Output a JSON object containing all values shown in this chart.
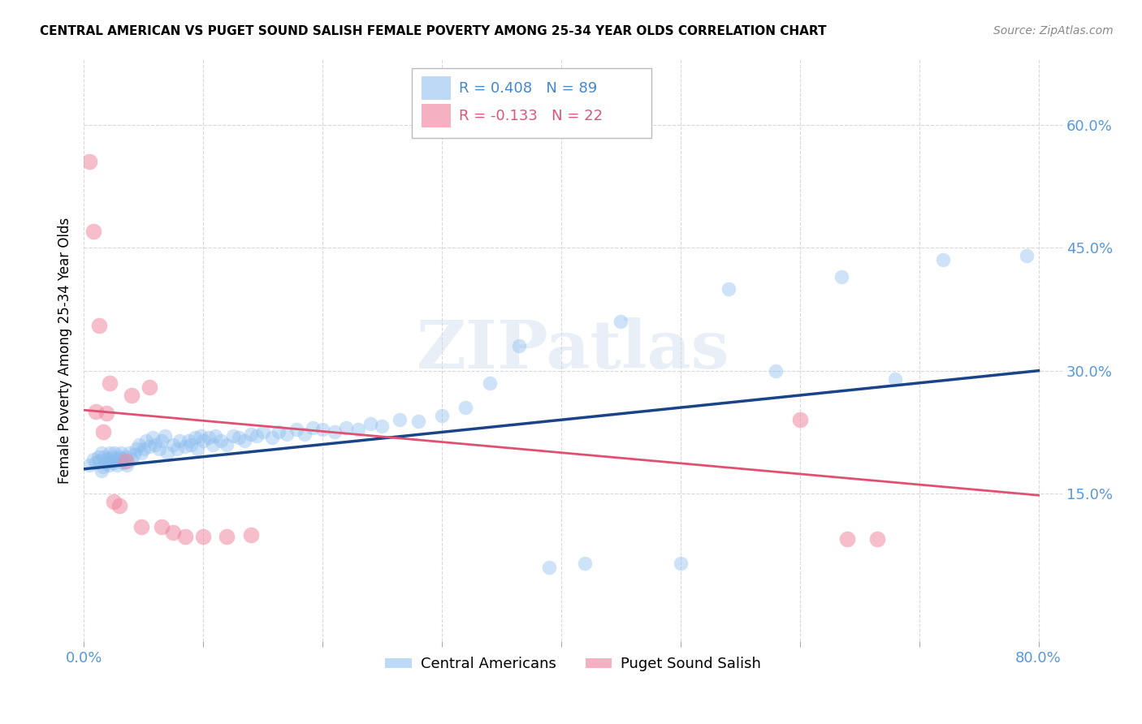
{
  "title": "CENTRAL AMERICAN VS PUGET SOUND SALISH FEMALE POVERTY AMONG 25-34 YEAR OLDS CORRELATION CHART",
  "source": "Source: ZipAtlas.com",
  "ylabel": "Female Poverty Among 25-34 Year Olds",
  "xlim": [
    0.0,
    0.82
  ],
  "ylim": [
    -0.03,
    0.68
  ],
  "xticks": [
    0.0,
    0.1,
    0.2,
    0.3,
    0.4,
    0.5,
    0.6,
    0.7,
    0.8
  ],
  "xticklabels": [
    "0.0%",
    "",
    "",
    "",
    "",
    "",
    "",
    "",
    "80.0%"
  ],
  "ytick_positions": [
    0.15,
    0.3,
    0.45,
    0.6
  ],
  "yticklabels": [
    "15.0%",
    "30.0%",
    "45.0%",
    "60.0%"
  ],
  "grid_color": "#d8d8d8",
  "background_color": "#ffffff",
  "blue_color": "#88bbee",
  "pink_color": "#f088a0",
  "blue_line_color": "#1a4488",
  "pink_line_color": "#e05070",
  "legend_blue_R": "R = 0.408",
  "legend_blue_N": "N = 89",
  "legend_pink_R": "R = -0.133",
  "legend_pink_N": "N = 22",
  "legend_label_blue": "Central Americans",
  "legend_label_pink": "Puget Sound Salish",
  "watermark": "ZIPatlas",
  "blue_x": [
    0.005,
    0.008,
    0.01,
    0.012,
    0.013,
    0.015,
    0.015,
    0.016,
    0.017,
    0.018,
    0.02,
    0.021,
    0.022,
    0.023,
    0.024,
    0.025,
    0.026,
    0.027,
    0.028,
    0.03,
    0.031,
    0.032,
    0.033,
    0.035,
    0.036,
    0.038,
    0.04,
    0.042,
    0.044,
    0.046,
    0.048,
    0.05,
    0.052,
    0.055,
    0.058,
    0.06,
    0.063,
    0.065,
    0.068,
    0.07,
    0.075,
    0.078,
    0.08,
    0.085,
    0.088,
    0.09,
    0.093,
    0.095,
    0.098,
    0.1,
    0.105,
    0.108,
    0.11,
    0.115,
    0.12,
    0.125,
    0.13,
    0.135,
    0.14,
    0.145,
    0.15,
    0.158,
    0.163,
    0.17,
    0.178,
    0.185,
    0.192,
    0.2,
    0.21,
    0.22,
    0.23,
    0.24,
    0.25,
    0.265,
    0.28,
    0.3,
    0.32,
    0.34,
    0.365,
    0.39,
    0.42,
    0.45,
    0.5,
    0.54,
    0.58,
    0.635,
    0.68,
    0.72,
    0.79
  ],
  "blue_y": [
    0.185,
    0.192,
    0.188,
    0.195,
    0.19,
    0.178,
    0.2,
    0.183,
    0.195,
    0.188,
    0.193,
    0.185,
    0.2,
    0.19,
    0.195,
    0.188,
    0.2,
    0.193,
    0.185,
    0.195,
    0.2,
    0.193,
    0.188,
    0.195,
    0.185,
    0.2,
    0.192,
    0.198,
    0.205,
    0.21,
    0.2,
    0.205,
    0.215,
    0.208,
    0.218,
    0.21,
    0.205,
    0.215,
    0.22,
    0.2,
    0.21,
    0.205,
    0.215,
    0.208,
    0.215,
    0.21,
    0.218,
    0.205,
    0.22,
    0.215,
    0.218,
    0.21,
    0.22,
    0.215,
    0.21,
    0.22,
    0.218,
    0.215,
    0.222,
    0.22,
    0.225,
    0.218,
    0.225,
    0.222,
    0.228,
    0.222,
    0.23,
    0.228,
    0.225,
    0.23,
    0.228,
    0.235,
    0.232,
    0.24,
    0.238,
    0.245,
    0.255,
    0.285,
    0.33,
    0.06,
    0.065,
    0.36,
    0.065,
    0.4,
    0.3,
    0.415,
    0.29,
    0.435,
    0.44
  ],
  "pink_x": [
    0.005,
    0.008,
    0.01,
    0.013,
    0.016,
    0.019,
    0.022,
    0.025,
    0.03,
    0.035,
    0.04,
    0.048,
    0.055,
    0.065,
    0.075,
    0.085,
    0.1,
    0.12,
    0.14,
    0.6,
    0.64,
    0.665
  ],
  "pink_y": [
    0.555,
    0.47,
    0.25,
    0.355,
    0.225,
    0.248,
    0.285,
    0.14,
    0.135,
    0.19,
    0.27,
    0.11,
    0.28,
    0.11,
    0.103,
    0.098,
    0.098,
    0.098,
    0.1,
    0.24,
    0.095,
    0.095
  ],
  "blue_trend_x": [
    0.0,
    0.8
  ],
  "blue_trend_y": [
    0.18,
    0.3
  ],
  "pink_trend_x": [
    0.0,
    0.8
  ],
  "pink_trend_y": [
    0.252,
    0.148
  ]
}
